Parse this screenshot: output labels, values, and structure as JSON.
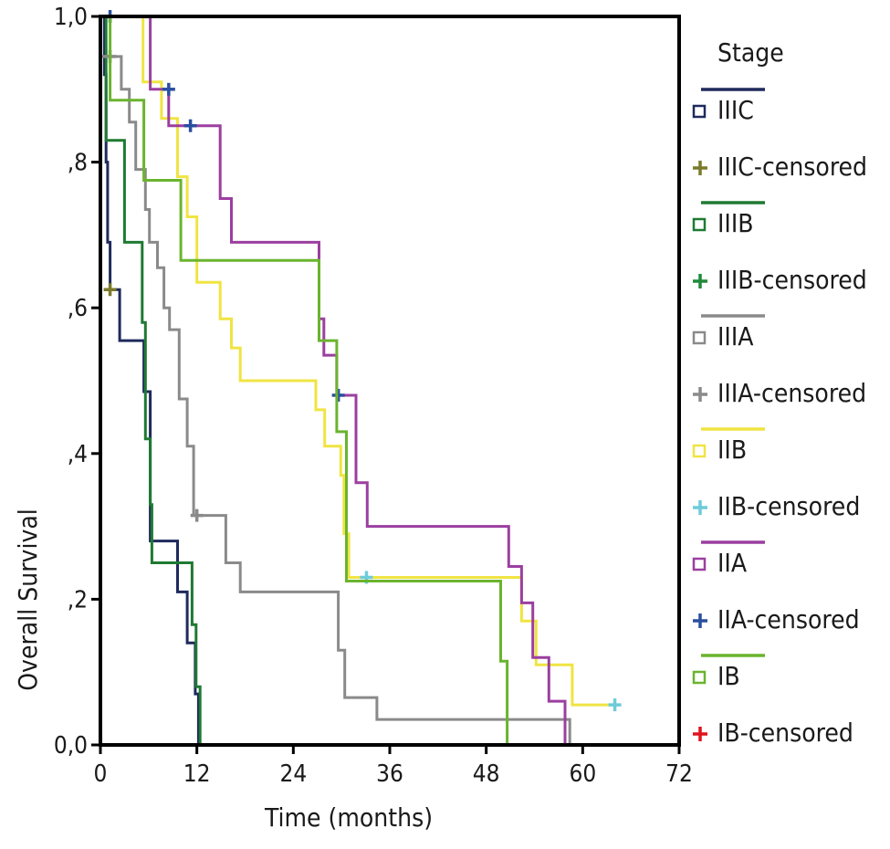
{
  "chart_data": {
    "type": "line",
    "xlabel": "Time (months)",
    "ylabel": "Overall Survival",
    "xlim": [
      0,
      72
    ],
    "ylim": [
      0,
      1
    ],
    "x_ticks": [
      "0",
      "12",
      "24",
      "36",
      "48",
      "60",
      "72"
    ],
    "y_ticks": [
      "0,0",
      ",2",
      ",4",
      ",6",
      ",8",
      "1,0"
    ],
    "legend_title": "Stage",
    "legend_position": "right",
    "legend": [
      {
        "label": "IIIC",
        "color": "#1f2a5c",
        "kind": "line"
      },
      {
        "label": "IIIC-censored",
        "color": "#7a7a2a",
        "kind": "censor"
      },
      {
        "label": "IIIB",
        "color": "#1e7a32",
        "kind": "line"
      },
      {
        "label": "IIIB-censored",
        "color": "#1e8a3a",
        "kind": "censor"
      },
      {
        "label": "IIIA",
        "color": "#8a8a8a",
        "kind": "line"
      },
      {
        "label": "IIIA-censored",
        "color": "#8a8a8a",
        "kind": "censor"
      },
      {
        "label": "IIB",
        "color": "#f0e442",
        "kind": "line"
      },
      {
        "label": "IIB-censored",
        "color": "#6ecbd9",
        "kind": "censor"
      },
      {
        "label": "IIA",
        "color": "#9b3fa0",
        "kind": "line"
      },
      {
        "label": "IIA-censored",
        "color": "#2a4fa0",
        "kind": "censor"
      },
      {
        "label": "IB",
        "color": "#6ab42e",
        "kind": "line"
      },
      {
        "label": "IB-censored",
        "color": "#e0141e",
        "kind": "censor"
      }
    ],
    "series": [
      {
        "name": "IIIC",
        "color": "#1f2a5c",
        "points": [
          [
            0,
            1.0
          ],
          [
            0.5,
            1.0
          ],
          [
            0.5,
            0.92
          ],
          [
            0.7,
            0.92
          ],
          [
            0.7,
            0.8
          ],
          [
            0.9,
            0.8
          ],
          [
            0.9,
            0.69
          ],
          [
            1.2,
            0.69
          ],
          [
            1.2,
            0.625
          ],
          [
            2.4,
            0.625
          ],
          [
            2.4,
            0.555
          ],
          [
            5.4,
            0.555
          ],
          [
            5.4,
            0.485
          ],
          [
            6.2,
            0.485
          ],
          [
            6.2,
            0.28
          ],
          [
            9.6,
            0.28
          ],
          [
            9.6,
            0.21
          ],
          [
            10.8,
            0.21
          ],
          [
            10.8,
            0.14
          ],
          [
            11.8,
            0.14
          ],
          [
            11.8,
            0.07
          ],
          [
            12.2,
            0.07
          ],
          [
            12.2,
            0.0
          ]
        ],
        "censored": [
          [
            1.2,
            0.625
          ]
        ],
        "censor_color": "#7a7a2a"
      },
      {
        "name": "IIIB",
        "color": "#1e7a32",
        "points": [
          [
            0,
            1.0
          ],
          [
            0.7,
            1.0
          ],
          [
            0.7,
            0.83
          ],
          [
            3.0,
            0.83
          ],
          [
            3.0,
            0.69
          ],
          [
            5.2,
            0.69
          ],
          [
            5.2,
            0.58
          ],
          [
            5.6,
            0.58
          ],
          [
            5.6,
            0.42
          ],
          [
            6.2,
            0.42
          ],
          [
            6.2,
            0.33
          ],
          [
            6.4,
            0.33
          ],
          [
            6.4,
            0.25
          ],
          [
            11.4,
            0.25
          ],
          [
            11.4,
            0.165
          ],
          [
            11.9,
            0.165
          ],
          [
            11.9,
            0.08
          ],
          [
            12.4,
            0.08
          ],
          [
            12.4,
            0.0
          ]
        ],
        "censored": []
      },
      {
        "name": "IIIA",
        "color": "#8a8a8a",
        "points": [
          [
            0,
            0.945
          ],
          [
            2.6,
            0.945
          ],
          [
            2.6,
            0.9
          ],
          [
            3.6,
            0.9
          ],
          [
            3.6,
            0.855
          ],
          [
            4.4,
            0.855
          ],
          [
            4.4,
            0.79
          ],
          [
            5.6,
            0.79
          ],
          [
            5.6,
            0.735
          ],
          [
            6.1,
            0.735
          ],
          [
            6.1,
            0.69
          ],
          [
            7.1,
            0.69
          ],
          [
            7.1,
            0.655
          ],
          [
            7.9,
            0.655
          ],
          [
            7.9,
            0.6
          ],
          [
            8.6,
            0.6
          ],
          [
            8.6,
            0.57
          ],
          [
            9.8,
            0.57
          ],
          [
            9.8,
            0.475
          ],
          [
            10.8,
            0.475
          ],
          [
            10.8,
            0.41
          ],
          [
            11.6,
            0.41
          ],
          [
            11.6,
            0.315
          ],
          [
            15.6,
            0.315
          ],
          [
            15.6,
            0.25
          ],
          [
            17.4,
            0.25
          ],
          [
            17.4,
            0.21
          ],
          [
            29.6,
            0.21
          ],
          [
            29.6,
            0.13
          ],
          [
            30.4,
            0.13
          ],
          [
            30.4,
            0.065
          ],
          [
            34.4,
            0.065
          ],
          [
            34.4,
            0.035
          ],
          [
            58.4,
            0.035
          ],
          [
            58.4,
            0.0
          ]
        ],
        "censored": [
          [
            1.2,
            0.945
          ],
          [
            12.0,
            0.315
          ]
        ]
      },
      {
        "name": "IIB",
        "color": "#f0e442",
        "points": [
          [
            0,
            1.0
          ],
          [
            5.3,
            1.0
          ],
          [
            5.3,
            0.91
          ],
          [
            7.6,
            0.91
          ],
          [
            7.6,
            0.86
          ],
          [
            9.6,
            0.86
          ],
          [
            9.6,
            0.78
          ],
          [
            10.8,
            0.78
          ],
          [
            10.8,
            0.725
          ],
          [
            12.0,
            0.725
          ],
          [
            12.0,
            0.635
          ],
          [
            14.9,
            0.635
          ],
          [
            14.9,
            0.585
          ],
          [
            16.3,
            0.585
          ],
          [
            16.3,
            0.545
          ],
          [
            17.4,
            0.545
          ],
          [
            17.4,
            0.5
          ],
          [
            26.8,
            0.5
          ],
          [
            26.8,
            0.46
          ],
          [
            27.9,
            0.46
          ],
          [
            27.9,
            0.41
          ],
          [
            29.9,
            0.41
          ],
          [
            29.9,
            0.37
          ],
          [
            30.3,
            0.37
          ],
          [
            30.3,
            0.29
          ],
          [
            30.9,
            0.29
          ],
          [
            30.9,
            0.23
          ],
          [
            52.4,
            0.23
          ],
          [
            52.4,
            0.17
          ],
          [
            54.2,
            0.17
          ],
          [
            54.2,
            0.11
          ],
          [
            58.7,
            0.11
          ],
          [
            58.7,
            0.055
          ],
          [
            64.0,
            0.055
          ]
        ],
        "censored": [
          [
            33.1,
            0.23
          ],
          [
            64.0,
            0.055
          ]
        ],
        "censor_color": "#6ecbd9"
      },
      {
        "name": "IIA",
        "color": "#9b3fa0",
        "points": [
          [
            0,
            1.0
          ],
          [
            6.2,
            1.0
          ],
          [
            6.2,
            0.9
          ],
          [
            8.5,
            0.9
          ],
          [
            8.5,
            0.85
          ],
          [
            14.9,
            0.85
          ],
          [
            14.9,
            0.75
          ],
          [
            16.3,
            0.75
          ],
          [
            16.3,
            0.69
          ],
          [
            27.2,
            0.69
          ],
          [
            27.2,
            0.585
          ],
          [
            27.8,
            0.585
          ],
          [
            27.8,
            0.535
          ],
          [
            29.4,
            0.535
          ],
          [
            29.4,
            0.48
          ],
          [
            31.8,
            0.48
          ],
          [
            31.8,
            0.36
          ],
          [
            33.2,
            0.36
          ],
          [
            33.2,
            0.3
          ],
          [
            50.8,
            0.3
          ],
          [
            50.8,
            0.245
          ],
          [
            52.4,
            0.245
          ],
          [
            52.4,
            0.195
          ],
          [
            53.8,
            0.195
          ],
          [
            53.8,
            0.12
          ],
          [
            55.8,
            0.12
          ],
          [
            55.8,
            0.06
          ],
          [
            57.8,
            0.06
          ],
          [
            57.8,
            0.0
          ]
        ],
        "censored": [
          [
            1.2,
            1.0
          ],
          [
            8.5,
            0.9
          ],
          [
            11.2,
            0.85
          ],
          [
            29.6,
            0.48
          ]
        ],
        "censor_color": "#2a4fa0"
      },
      {
        "name": "IB",
        "color": "#6ab42e",
        "points": [
          [
            0,
            1.0
          ],
          [
            1.2,
            1.0
          ],
          [
            1.2,
            0.885
          ],
          [
            5.4,
            0.885
          ],
          [
            5.4,
            0.775
          ],
          [
            10.0,
            0.775
          ],
          [
            10.0,
            0.665
          ],
          [
            27.2,
            0.665
          ],
          [
            27.2,
            0.555
          ],
          [
            29.4,
            0.555
          ],
          [
            29.4,
            0.43
          ],
          [
            30.6,
            0.43
          ],
          [
            30.6,
            0.225
          ],
          [
            49.8,
            0.225
          ],
          [
            49.8,
            0.115
          ],
          [
            50.6,
            0.115
          ],
          [
            50.6,
            0.0
          ]
        ],
        "censored": []
      }
    ]
  }
}
